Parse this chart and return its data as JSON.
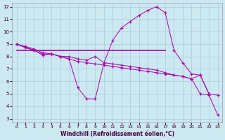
{
  "xlabel": "Windchill (Refroidissement éolien,°C)",
  "ylabel": "",
  "background_color": "#cce8f0",
  "grid_color": "#aaccdd",
  "line_color": "#aa00aa",
  "xlim": [
    -0.5,
    23.5
  ],
  "ylim": [
    2.7,
    12.3
  ],
  "xticks": [
    0,
    1,
    2,
    3,
    4,
    5,
    6,
    7,
    8,
    9,
    10,
    11,
    12,
    13,
    14,
    15,
    16,
    17,
    18,
    19,
    20,
    21,
    22,
    23
  ],
  "yticks": [
    3,
    4,
    5,
    6,
    7,
    8,
    9,
    10,
    11,
    12
  ],
  "line1_x": [
    0,
    1,
    2,
    3,
    4,
    5,
    6,
    7,
    8,
    9,
    10,
    11,
    12,
    13,
    14,
    15,
    16,
    17,
    18,
    19,
    20,
    21,
    22,
    23
  ],
  "line1_y": [
    9.0,
    8.8,
    8.6,
    8.3,
    8.2,
    8.0,
    7.8,
    7.6,
    7.5,
    7.4,
    7.3,
    7.2,
    7.1,
    7.0,
    6.9,
    6.8,
    6.7,
    6.6,
    6.5,
    6.4,
    6.2,
    5.0,
    4.9,
    3.3
  ],
  "line2_x": [
    0,
    1,
    2,
    3,
    4,
    5,
    6,
    7,
    8,
    9,
    10,
    11,
    12,
    13,
    14,
    15,
    16,
    17,
    18,
    19,
    20,
    21,
    22,
    23
  ],
  "line2_y": [
    9.0,
    8.7,
    8.5,
    8.2,
    8.2,
    8.0,
    7.8,
    5.5,
    4.6,
    4.6,
    7.5,
    9.3,
    10.3,
    10.8,
    11.3,
    11.7,
    12.0,
    11.5,
    8.5,
    7.5,
    6.6,
    6.5,
    5.0,
    4.9
  ],
  "line3_x": [
    0,
    2,
    3,
    4,
    5,
    6,
    7,
    8,
    9,
    10,
    11,
    12,
    13,
    14,
    15,
    16,
    17,
    18,
    19,
    20,
    21,
    22
  ],
  "line3_y": [
    9.0,
    8.5,
    8.1,
    8.2,
    8.0,
    8.0,
    7.8,
    7.7,
    8.0,
    7.5,
    7.4,
    7.3,
    7.2,
    7.1,
    7.0,
    6.9,
    6.7,
    6.5,
    6.4,
    6.2,
    6.5,
    5.0
  ],
  "line4_x": [
    0,
    17
  ],
  "line4_y": [
    8.5,
    8.5
  ]
}
